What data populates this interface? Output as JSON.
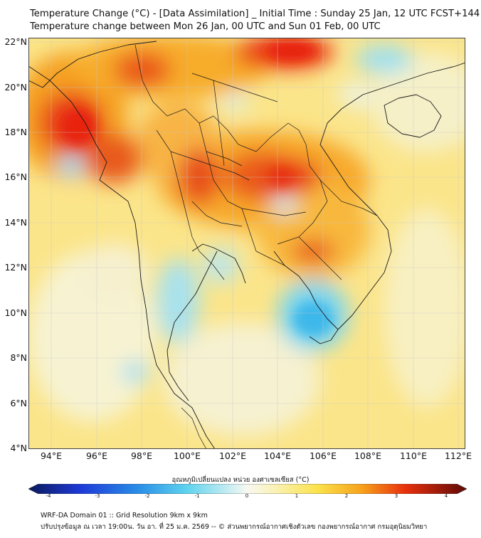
{
  "title": {
    "line1": "Temperature Change (°C) - [Data Assimilation] _ Initial Time : Sunday 25 Jan, 12 UTC FCST+144",
    "line2": "Temperature change between Mon 26 Jan, 00 UTC and Sun 01 Feb, 00 UTC"
  },
  "lat_labels": [
    "22°N",
    "20°N",
    "18°N",
    "16°N",
    "14°N",
    "12°N",
    "10°N",
    "8°N",
    "6°N",
    "4°N"
  ],
  "lon_labels": [
    "94°E",
    "96°E",
    "98°E",
    "100°E",
    "102°E",
    "104°E",
    "106°E",
    "108°E",
    "110°E",
    "112°E"
  ],
  "colorbar": {
    "title": "อุณหภูมิเปลี่ยนแปลง หน่วย องศาเซลเซียส (°C)",
    "ticks": [
      "-4",
      "-3",
      "-2",
      "-1",
      "0",
      "1",
      "2",
      "3",
      "4"
    ]
  },
  "footer": {
    "line1": "WRF-DA Domain 01 :: Grid Resolution 9km x 9km",
    "line2": "ปรับปรุงข้อมูล ณ เวลา 19:00น. วัน อา. ที่ 25 ม.ค. 2569 -- © ส่วนพยากรณ์อากาศเชิงตัวเลข กองพยากรณ์อากาศ กรมอุตุนิยมวิทยา"
  },
  "colors": {
    "warm_strong": "#e8200c",
    "warm": "#f7a21c",
    "neutral_warm": "#fbe86a",
    "neutral": "#f7f7e8",
    "cool": "#7fd6ee",
    "cool_strong": "#3cb8ea"
  }
}
